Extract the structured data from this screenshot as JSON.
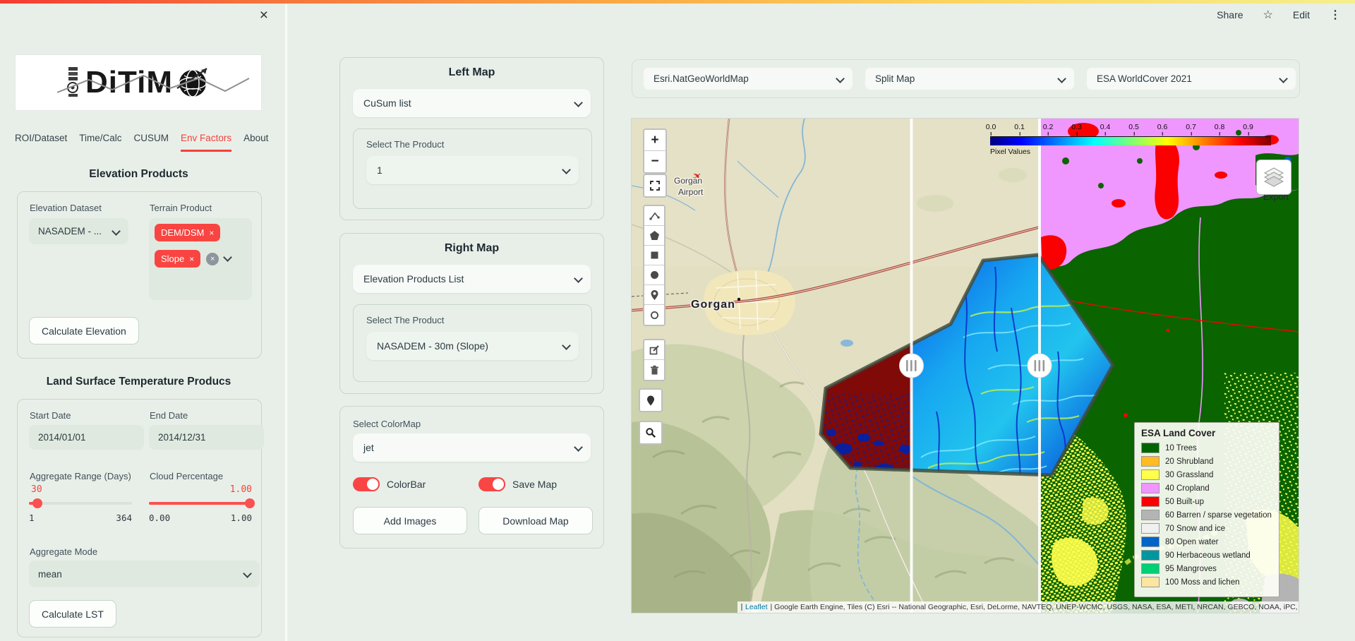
{
  "header": {
    "share": "Share",
    "edit": "Edit",
    "star_icon": "☆",
    "menu_icon": "⋮"
  },
  "sidebar": {
    "close_icon": "×",
    "logo": {
      "text": "DiTiM"
    },
    "tabs": [
      {
        "label": "ROI/Dataset"
      },
      {
        "label": "Time/Calc"
      },
      {
        "label": "CUSUM"
      },
      {
        "label": "Env Factors"
      },
      {
        "label": "About"
      }
    ],
    "elevation": {
      "title": "Elevation Products",
      "dataset_label": "Elevation Dataset",
      "dataset_value": "NASADEM - ...",
      "terrain_label": "Terrain Product",
      "tag1": "DEM/DSM",
      "tag2": "Slope",
      "tag_close_icon": "×",
      "clear_icon": "×",
      "calculate_button": "Calculate Elevation"
    },
    "lst": {
      "title": "Land Surface Temperature Producs",
      "start_date_label": "Start Date",
      "start_date_value": "2014/01/01",
      "end_date_label": "End Date",
      "end_date_value": "2014/12/31",
      "aggregate_range_label": "Aggregate Range (Days)",
      "aggregate_range_value": "30",
      "aggregate_range_min": "1",
      "aggregate_range_max": "364",
      "cloud_label": "Cloud Percentage",
      "cloud_value": "1.00",
      "cloud_min": "0.00",
      "cloud_max": "1.00",
      "aggregate_mode_label": "Aggregate Mode",
      "aggregate_mode_value": "mean",
      "calculate_button": "Calculate LST"
    }
  },
  "controls": {
    "left_map": {
      "title": "Left Map",
      "list_value": "CuSum list",
      "product_label": "Select The Product",
      "product_value": "1"
    },
    "right_map": {
      "title": "Right Map",
      "list_value": "Elevation Products List",
      "product_label": "Select The Product",
      "product_value": "NASADEM - 30m (Slope)"
    },
    "display": {
      "colormap_label": "Select ColorMap",
      "colormap_value": "jet",
      "colorbar_label": "ColorBar",
      "savemap_label": "Save Map",
      "add_images_button": "Add Images",
      "download_map_button": "Download Map"
    }
  },
  "map": {
    "basemap_value": "Esri.NatGeoWorldMap",
    "mode_value": "Split Map",
    "overlay_value": "ESA WorldCover 2021",
    "zoom_in": "+",
    "zoom_out": "−",
    "labels": {
      "city": "Gorgan",
      "airport_l1": "Gorgan",
      "airport_l2": "Airport"
    },
    "export_label": "Export",
    "colorbar": {
      "ticks": [
        "0.0",
        "0.1",
        "0.2",
        "0.3",
        "0.4",
        "0.5",
        "0.6",
        "0.7",
        "0.8",
        "0.9"
      ],
      "label": "Pixel Values"
    },
    "legend": {
      "title": "ESA Land Cover",
      "items": [
        {
          "color": "#006400",
          "label": "10 Trees"
        },
        {
          "color": "#ffbb22",
          "label": "20 Shrubland"
        },
        {
          "color": "#ffff4c",
          "label": "30 Grassland"
        },
        {
          "color": "#f096ff",
          "label": "40 Cropland"
        },
        {
          "color": "#fa0000",
          "label": "50 Built-up"
        },
        {
          "color": "#b4b4b4",
          "label": "60 Barren / sparse vegetation"
        },
        {
          "color": "#f0f0f0",
          "label": "70 Snow and ice"
        },
        {
          "color": "#0064c8",
          "label": "80 Open water"
        },
        {
          "color": "#0096a0",
          "label": "90 Herbaceous wetland"
        },
        {
          "color": "#00cf75",
          "label": "95 Mangroves"
        },
        {
          "color": "#fae6a0",
          "label": "100 Moss and lichen"
        }
      ]
    },
    "attribution": {
      "leaflet": "Leaflet",
      "text": "| Google Earth Engine, Tiles (C) Esri -- National Geographic, Esri, DeLorme, NAVTEQ, UNEP-WCMC, USGS, NASA, ESA, METI, NRCAN, GEBCO, NOAA, iPC, ESA"
    }
  },
  "colors": {
    "accent_red": "#f4433c",
    "tag_red": "#f94541",
    "toggle_red": "#fa4545"
  }
}
